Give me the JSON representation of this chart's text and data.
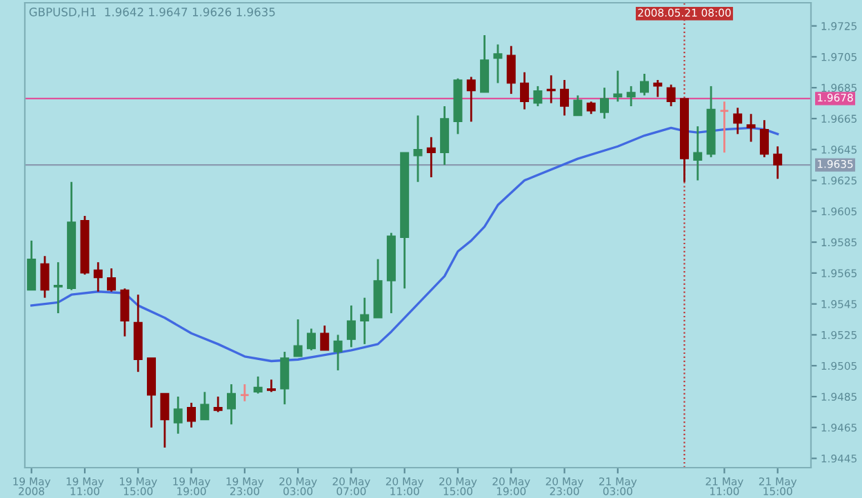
{
  "chart_data": {
    "type": "candlestick",
    "title": "GBPUSD,H1  1.9642 1.9647 1.9626 1.9635",
    "x": [
      "2008-05-19T07:00",
      "2008-05-19T08:00",
      "2008-05-19T09:00",
      "2008-05-19T10:00",
      "2008-05-19T11:00",
      "2008-05-19T12:00",
      "2008-05-19T13:00",
      "2008-05-19T14:00",
      "2008-05-19T15:00",
      "2008-05-19T16:00",
      "2008-05-19T17:00",
      "2008-05-19T18:00",
      "2008-05-19T19:00",
      "2008-05-19T20:00",
      "2008-05-19T21:00",
      "2008-05-19T22:00",
      "2008-05-19T23:00",
      "2008-05-20T00:00",
      "2008-05-20T01:00",
      "2008-05-20T02:00",
      "2008-05-20T03:00",
      "2008-05-20T04:00",
      "2008-05-20T05:00",
      "2008-05-20T06:00",
      "2008-05-20T07:00",
      "2008-05-20T08:00",
      "2008-05-20T09:00",
      "2008-05-20T10:00",
      "2008-05-20T11:00",
      "2008-05-20T12:00",
      "2008-05-20T13:00",
      "2008-05-20T14:00",
      "2008-05-20T15:00",
      "2008-05-20T16:00",
      "2008-05-20T17:00",
      "2008-05-20T18:00",
      "2008-05-20T19:00",
      "2008-05-20T20:00",
      "2008-05-20T21:00",
      "2008-05-20T22:00",
      "2008-05-20T23:00",
      "2008-05-21T00:00",
      "2008-05-21T01:00",
      "2008-05-21T02:00",
      "2008-05-21T03:00",
      "2008-05-21T04:00",
      "2008-05-21T05:00",
      "2008-05-21T06:00",
      "2008-05-21T07:00",
      "2008-05-21T08:00",
      "2008-05-21T09:00",
      "2008-05-21T10:00",
      "2008-05-21T11:00",
      "2008-05-21T12:00",
      "2008-05-21T13:00",
      "2008-05-21T14:00",
      "2008-05-21T15:00"
    ],
    "ohlc": [
      [
        1.9554,
        1.9586,
        1.9554,
        1.9574
      ],
      [
        1.9571,
        1.9576,
        1.9549,
        1.9554
      ],
      [
        1.9556,
        1.9572,
        1.9539,
        1.9557
      ],
      [
        1.9555,
        1.9624,
        1.9554,
        1.9598
      ],
      [
        1.9599,
        1.9602,
        1.9564,
        1.9565
      ],
      [
        1.9567,
        1.9572,
        1.9553,
        1.9562
      ],
      [
        1.9562,
        1.9568,
        1.9553,
        1.9554
      ],
      [
        1.9554,
        1.9555,
        1.9524,
        1.9534
      ],
      [
        1.9533,
        1.9551,
        1.9501,
        1.9509
      ],
      [
        1.951,
        1.951,
        1.9465,
        1.9486
      ],
      [
        1.9487,
        1.9487,
        1.9452,
        1.947
      ],
      [
        1.9468,
        1.9485,
        1.9461,
        1.9477
      ],
      [
        1.9478,
        1.9481,
        1.9465,
        1.9469
      ],
      [
        1.947,
        1.9488,
        1.947,
        1.948
      ],
      [
        1.9478,
        1.9485,
        1.9475,
        1.9476
      ],
      [
        1.9477,
        1.9493,
        1.9467,
        1.9487
      ],
      [
        1.9486,
        1.9493,
        1.9482,
        1.9486
      ],
      [
        1.9488,
        1.9498,
        1.9487,
        1.9491
      ],
      [
        1.949,
        1.9496,
        1.9488,
        1.9489
      ],
      [
        1.949,
        1.9514,
        1.948,
        1.951
      ],
      [
        1.9511,
        1.9535,
        1.9511,
        1.9518
      ],
      [
        1.9516,
        1.9529,
        1.9515,
        1.9526
      ],
      [
        1.9526,
        1.9531,
        1.9515,
        1.9515
      ],
      [
        1.9514,
        1.9525,
        1.9502,
        1.9521
      ],
      [
        1.9522,
        1.9544,
        1.9517,
        1.9534
      ],
      [
        1.9534,
        1.9549,
        1.9519,
        1.9538
      ],
      [
        1.9536,
        1.9574,
        1.9536,
        1.956
      ],
      [
        1.956,
        1.9591,
        1.9539,
        1.9589
      ],
      [
        1.9588,
        1.9643,
        1.9555,
        1.9643
      ],
      [
        1.9641,
        1.9667,
        1.9624,
        1.9645
      ],
      [
        1.9646,
        1.9653,
        1.9627,
        1.9643
      ],
      [
        1.9643,
        1.9673,
        1.9635,
        1.9665
      ],
      [
        1.9663,
        1.9691,
        1.9655,
        1.969
      ],
      [
        1.969,
        1.9692,
        1.9663,
        1.9683
      ],
      [
        1.9682,
        1.9719,
        1.9682,
        1.9703
      ],
      [
        1.9704,
        1.9713,
        1.9688,
        1.9707
      ],
      [
        1.9706,
        1.9712,
        1.9681,
        1.9688
      ],
      [
        1.9688,
        1.9695,
        1.9671,
        1.9676
      ],
      [
        1.9675,
        1.9686,
        1.9673,
        1.9683
      ],
      [
        1.9684,
        1.9693,
        1.9675,
        1.9683
      ],
      [
        1.9684,
        1.969,
        1.9667,
        1.9673
      ],
      [
        1.9667,
        1.968,
        1.9667,
        1.9677
      ],
      [
        1.9675,
        1.9676,
        1.9668,
        1.967
      ],
      [
        1.9669,
        1.9685,
        1.9665,
        1.9678
      ],
      [
        1.9679,
        1.9696,
        1.9676,
        1.9681
      ],
      [
        1.9679,
        1.9686,
        1.9673,
        1.9682
      ],
      [
        1.9682,
        1.9694,
        1.968,
        1.9689
      ],
      [
        1.9688,
        1.969,
        1.9679,
        1.9686
      ],
      [
        1.9685,
        1.9687,
        1.9673,
        1.9676
      ],
      [
        1.9678,
        1.9678,
        1.9624,
        1.9639
      ],
      [
        1.9638,
        1.966,
        1.9625,
        1.9643
      ],
      [
        1.9642,
        1.9686,
        1.964,
        1.9671
      ],
      [
        1.967,
        1.9676,
        1.9643,
        1.967
      ],
      [
        1.9668,
        1.9672,
        1.9655,
        1.9662
      ],
      [
        1.9661,
        1.9668,
        1.965,
        1.9659
      ],
      [
        1.9658,
        1.9664,
        1.964,
        1.9642
      ],
      [
        1.9642,
        1.9647,
        1.9626,
        1.9635
      ]
    ],
    "colors": [
      "#2e8b57",
      "#8b0000",
      "#2e8b57",
      "#2e8b57",
      "#8b0000",
      "#8b0000",
      "#8b0000",
      "#8b0000",
      "#8b0000",
      "#8b0000",
      "#8b0000",
      "#2e8b57",
      "#8b0000",
      "#2e8b57",
      "#8b0000",
      "#2e8b57",
      "#f08080",
      "#2e8b57",
      "#8b0000",
      "#2e8b57",
      "#2e8b57",
      "#2e8b57",
      "#8b0000",
      "#2e8b57",
      "#2e8b57",
      "#2e8b57",
      "#2e8b57",
      "#2e8b57",
      "#2e8b57",
      "#2e8b57",
      "#8b0000",
      "#2e8b57",
      "#2e8b57",
      "#8b0000",
      "#2e8b57",
      "#2e8b57",
      "#8b0000",
      "#8b0000",
      "#2e8b57",
      "#8b0000",
      "#8b0000",
      "#2e8b57",
      "#8b0000",
      "#2e8b57",
      "#2e8b57",
      "#2e8b57",
      "#2e8b57",
      "#8b0000",
      "#8b0000",
      "#8b0000",
      "#2e8b57",
      "#2e8b57",
      "#f08080",
      "#8b0000",
      "#8b0000",
      "#8b0000",
      "#8b0000"
    ],
    "series": [
      {
        "type": "line",
        "color": "#4169e1",
        "x": [
          "2008-05-19T07:00",
          "2008-05-19T09:00",
          "2008-05-19T10:00",
          "2008-05-19T12:00",
          "2008-05-19T14:00",
          "2008-05-19T15:00",
          "2008-05-19T17:00",
          "2008-05-19T19:00",
          "2008-05-19T21:00",
          "2008-05-19T23:00",
          "2008-05-20T01:00",
          "2008-05-20T03:00",
          "2008-05-20T05:00",
          "2008-05-20T07:00",
          "2008-05-20T09:00",
          "2008-05-20T10:00",
          "2008-05-20T12:00",
          "2008-05-20T14:00",
          "2008-05-20T15:00",
          "2008-05-20T16:00",
          "2008-05-20T17:00",
          "2008-05-20T18:00",
          "2008-05-20T20:00",
          "2008-05-21T00:00",
          "2008-05-21T03:00",
          "2008-05-21T05:00",
          "2008-05-21T07:00",
          "2008-05-21T08:00",
          "2008-05-21T09:00",
          "2008-05-21T11:00",
          "2008-05-21T13:00",
          "2008-05-21T14:00",
          "2008-05-21T15:00"
        ],
        "values": [
          1.9544,
          1.9546,
          1.9551,
          1.9553,
          1.9552,
          1.9544,
          1.9536,
          1.9526,
          1.9519,
          1.9511,
          1.9508,
          1.9509,
          1.9512,
          1.9515,
          1.9519,
          1.9527,
          1.9545,
          1.9563,
          1.9579,
          1.9586,
          1.9595,
          1.9609,
          1.9625,
          1.9639,
          1.9647,
          1.9654,
          1.9659,
          1.9657,
          1.9656,
          1.9658,
          1.9659,
          1.9658,
          1.9655
        ]
      }
    ],
    "xlim": [
      "2008-05-19T06:30",
      "2008-05-21T17:30"
    ],
    "xticks": [
      {
        "value": "2008-05-19T07:00",
        "label": "19 May 2008"
      },
      {
        "value": "2008-05-19T11:00",
        "label": "19 May 11:00"
      },
      {
        "value": "2008-05-19T15:00",
        "label": "19 May 15:00"
      },
      {
        "value": "2008-05-19T19:00",
        "label": "19 May 19:00"
      },
      {
        "value": "2008-05-19T23:00",
        "label": "19 May 23:00"
      },
      {
        "value": "2008-05-20T03:00",
        "label": "20 May 03:00"
      },
      {
        "value": "2008-05-20T07:00",
        "label": "20 May 07:00"
      },
      {
        "value": "2008-05-20T11:00",
        "label": "20 May 11:00"
      },
      {
        "value": "2008-05-20T15:00",
        "label": "20 May 15:00"
      },
      {
        "value": "2008-05-20T19:00",
        "label": "20 May 19:00"
      },
      {
        "value": "2008-05-20T23:00",
        "label": "20 May 23:00"
      },
      {
        "value": "2008-05-21T03:00",
        "label": "21 May 03:00"
      },
      {
        "value": "2008-05-21T11:00",
        "label": "21 May 11:00"
      },
      {
        "value": "2008-05-21T15:00",
        "label": "21 May 15:00"
      }
    ],
    "ylim": [
      1.9439,
      1.974
    ],
    "yticks": [
      1.9445,
      1.9465,
      1.9485,
      1.9505,
      1.9525,
      1.9545,
      1.9565,
      1.9585,
      1.9605,
      1.9625,
      1.9645,
      1.9665,
      1.9685,
      1.9705,
      1.9725
    ],
    "ref_lines": [
      {
        "axis": "y",
        "value": 1.9678,
        "label": "1.9678",
        "color": "#e0509a",
        "line_style": "solid"
      },
      {
        "axis": "y",
        "value": 1.9635,
        "label": "1.9635",
        "color": "#8a9ab0",
        "line_style": "solid"
      },
      {
        "axis": "x",
        "value": "2008-05-21T08:00",
        "label": "2008.05.21 08:00",
        "color": "#c03030",
        "line_style": "dotted"
      }
    ],
    "grid": false
  }
}
